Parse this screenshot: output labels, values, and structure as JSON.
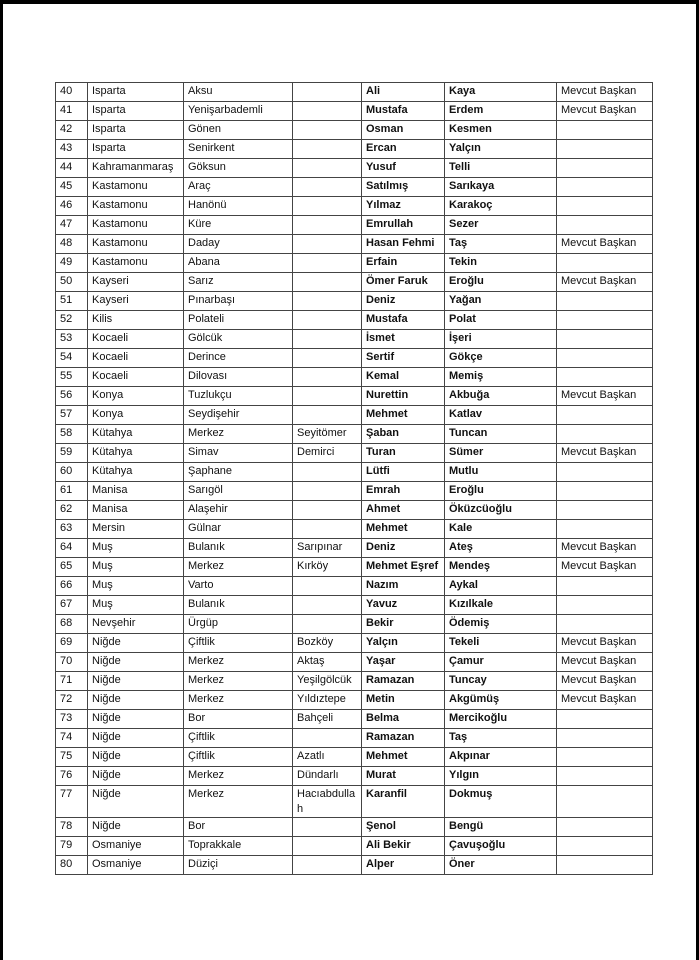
{
  "table": {
    "rows": [
      [
        "40",
        "Isparta",
        "Aksu",
        "",
        "Ali",
        "Kaya",
        "Mevcut Başkan"
      ],
      [
        "41",
        "Isparta",
        "Yenişarbademli",
        "",
        "Mustafa",
        "Erdem",
        "Mevcut Başkan"
      ],
      [
        "42",
        "Isparta",
        "Gönen",
        "",
        "Osman",
        "Kesmen",
        ""
      ],
      [
        "43",
        "Isparta",
        "Senirkent",
        "",
        "Ercan",
        "Yalçın",
        ""
      ],
      [
        "44",
        "Kahramanmaraş",
        "Göksun",
        "",
        "Yusuf",
        "Telli",
        ""
      ],
      [
        "45",
        "Kastamonu",
        "Araç",
        "",
        "Satılmış",
        "Sarıkaya",
        ""
      ],
      [
        "46",
        "Kastamonu",
        "Hanönü",
        "",
        "Yılmaz",
        "Karakoç",
        ""
      ],
      [
        "47",
        "Kastamonu",
        "Küre",
        "",
        "Emrullah",
        "Sezer",
        ""
      ],
      [
        "48",
        "Kastamonu",
        "Daday",
        "",
        "Hasan Fehmi",
        "Taş",
        "Mevcut Başkan"
      ],
      [
        "49",
        "Kastamonu",
        "Abana",
        "",
        "Erfain",
        "Tekin",
        ""
      ],
      [
        "50",
        "Kayseri",
        "Sarız",
        "",
        "Ömer Faruk",
        "Eroğlu",
        "Mevcut Başkan"
      ],
      [
        "51",
        "Kayseri",
        "Pınarbaşı",
        "",
        "Deniz",
        "Yağan",
        ""
      ],
      [
        "52",
        "Kilis",
        "Polateli",
        "",
        "Mustafa",
        "Polat",
        ""
      ],
      [
        "53",
        "Kocaeli",
        "Gölcük",
        "",
        "İsmet",
        "İşeri",
        ""
      ],
      [
        "54",
        "Kocaeli",
        "Derince",
        "",
        "Sertif",
        "Gökçe",
        ""
      ],
      [
        "55",
        "Kocaeli",
        "Dilovası",
        "",
        "Kemal",
        "Memiş",
        ""
      ],
      [
        "56",
        "Konya",
        "Tuzlukçu",
        "",
        "Nurettin",
        "Akbuğa",
        "Mevcut Başkan"
      ],
      [
        "57",
        "Konya",
        "Seydişehir",
        "",
        "Mehmet",
        "Katlav",
        ""
      ],
      [
        "58",
        "Kütahya",
        "Merkez",
        "Seyitömer",
        "Şaban",
        "Tuncan",
        ""
      ],
      [
        "59",
        "Kütahya",
        "Simav",
        "Demirci",
        "Turan",
        "Sümer",
        "Mevcut Başkan"
      ],
      [
        "60",
        "Kütahya",
        "Şaphane",
        "",
        "Lütfi",
        "Mutlu",
        ""
      ],
      [
        "61",
        "Manisa",
        "Sarıgöl",
        "",
        "Emrah",
        "Eroğlu",
        ""
      ],
      [
        "62",
        "Manisa",
        "Alaşehir",
        "",
        "Ahmet",
        "Öküzcüoğlu",
        ""
      ],
      [
        "63",
        "Mersin",
        "Gülnar",
        "",
        "Mehmet",
        "Kale",
        ""
      ],
      [
        "64",
        "Muş",
        "Bulanık",
        "Sarıpınar",
        "Deniz",
        "Ateş",
        "Mevcut Başkan"
      ],
      [
        "65",
        "Muş",
        "Merkez",
        "Kırköy",
        "Mehmet Eşref",
        "Mendeş",
        "Mevcut Başkan"
      ],
      [
        "66",
        "Muş",
        "Varto",
        "",
        "Nazım",
        "Aykal",
        ""
      ],
      [
        "67",
        "Muş",
        "Bulanık",
        "",
        "Yavuz",
        "Kızılkale",
        ""
      ],
      [
        "68",
        "Nevşehir",
        "Ürgüp",
        "",
        "Bekir",
        "Ödemiş",
        ""
      ],
      [
        "69",
        "Niğde",
        "Çiftlik",
        "Bozköy",
        "Yalçın",
        "Tekeli",
        "Mevcut Başkan"
      ],
      [
        "70",
        "Niğde",
        "Merkez",
        "Aktaş",
        "Yaşar",
        "Çamur",
        "Mevcut Başkan"
      ],
      [
        "71",
        "Niğde",
        "Merkez",
        "Yeşilgölcük",
        "Ramazan",
        "Tuncay",
        "Mevcut Başkan"
      ],
      [
        "72",
        "Niğde",
        "Merkez",
        "Yıldıztepe",
        "Metin",
        "Akgümüş",
        "Mevcut Başkan"
      ],
      [
        "73",
        "Niğde",
        "Bor",
        "Bahçeli",
        "Belma",
        "Mercikoğlu",
        ""
      ],
      [
        "74",
        "Niğde",
        "Çiftlik",
        "",
        "Ramazan",
        "Taş",
        ""
      ],
      [
        "75",
        "Niğde",
        "Çiftlik",
        "Azatlı",
        "Mehmet",
        "Akpınar",
        ""
      ],
      [
        "76",
        "Niğde",
        "Merkez",
        "Dündarlı",
        "Murat",
        "Yılgın",
        ""
      ],
      [
        "77",
        "Niğde",
        "Merkez",
        "Hacıabdullah",
        "Karanfil",
        "Dokmuş",
        ""
      ],
      [
        "78",
        "Niğde",
        "Bor",
        "",
        "Şenol",
        "Bengü",
        ""
      ],
      [
        "79",
        "Osmaniye",
        "Toprakkale",
        "",
        "Ali Bekir",
        "Çavuşoğlu",
        ""
      ],
      [
        "80",
        "Osmaniye",
        "Düziçi",
        "",
        "Alper",
        "Öner",
        ""
      ]
    ]
  }
}
